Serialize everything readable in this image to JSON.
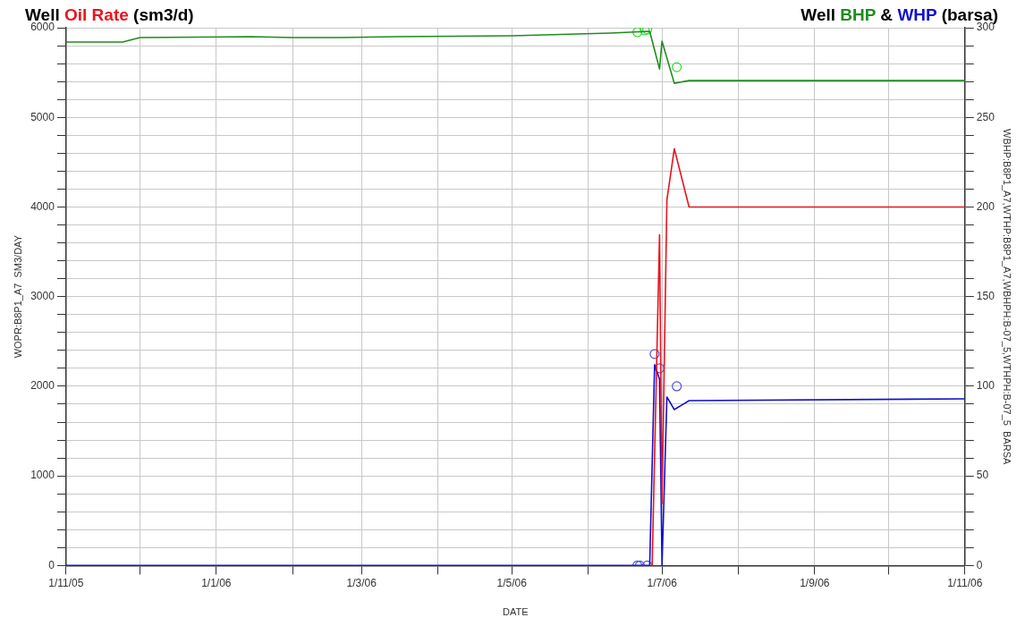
{
  "chart_data": {
    "type": "line",
    "annotations": [
      "Well",
      "(sm3/d)",
      "Well",
      "&",
      "(barsa)"
    ],
    "xlabel": "DATE",
    "ylabel": "WOPR:B8P1_A7  SM3/DAY",
    "y2label": "WBHP:B8P1_A7,WTHP:B8P1_A7,WBHPH:B-07_5,WTHPH:B-07_5  BARSA",
    "xlim": [
      "2005-11-01",
      "2006-11-01"
    ],
    "xticks": [
      {
        "value": "2005-11-01",
        "label": "1/11/05"
      },
      {
        "value": "2005-12-01",
        "label": null
      },
      {
        "value": "2006-01-01",
        "label": "1/1/06"
      },
      {
        "value": "2006-02-01",
        "label": null
      },
      {
        "value": "2006-03-01",
        "label": "1/3/06"
      },
      {
        "value": "2006-04-01",
        "label": null
      },
      {
        "value": "2006-05-01",
        "label": "1/5/06"
      },
      {
        "value": "2006-06-01",
        "label": null
      },
      {
        "value": "2006-07-01",
        "label": "1/7/06"
      },
      {
        "value": "2006-08-01",
        "label": null
      },
      {
        "value": "2006-09-01",
        "label": "1/9/06"
      },
      {
        "value": "2006-10-01",
        "label": null
      },
      {
        "value": "2006-11-01",
        "label": "1/11/06"
      }
    ],
    "ylim": [
      0,
      6000
    ],
    "yticks": [
      0,
      {
        "value": 200,
        "label": null
      },
      {
        "value": 400,
        "label": null
      },
      {
        "value": 600,
        "label": null
      },
      {
        "value": 800,
        "label": null
      },
      1000,
      {
        "value": 1200,
        "label": null
      },
      {
        "value": 1400,
        "label": null
      },
      {
        "value": 1600,
        "label": null
      },
      {
        "value": 1800,
        "label": null
      },
      2000,
      {
        "value": 2200,
        "label": null
      },
      {
        "value": 2400,
        "label": null
      },
      {
        "value": 2600,
        "label": null
      },
      {
        "value": 2800,
        "label": null
      },
      3000,
      {
        "value": 3200,
        "label": null
      },
      {
        "value": 3400,
        "label": null
      },
      {
        "value": 3600,
        "label": null
      },
      {
        "value": 3800,
        "label": null
      },
      4000,
      {
        "value": 4200,
        "label": null
      },
      {
        "value": 4400,
        "label": null
      },
      {
        "value": 4600,
        "label": null
      },
      {
        "value": 4800,
        "label": null
      },
      5000,
      {
        "value": 5200,
        "label": null
      },
      {
        "value": 5400,
        "label": null
      },
      {
        "value": 5600,
        "label": null
      },
      {
        "value": 5800,
        "label": null
      },
      6000
    ],
    "y2lim": [
      0,
      300
    ],
    "y2ticks": [
      0,
      {
        "value": 10,
        "label": null
      },
      {
        "value": 20,
        "label": null
      },
      {
        "value": 30,
        "label": null
      },
      {
        "value": 40,
        "label": null
      },
      50,
      {
        "value": 60,
        "label": null
      },
      {
        "value": 70,
        "label": null
      },
      {
        "value": 80,
        "label": null
      },
      {
        "value": 90,
        "label": null
      },
      100,
      {
        "value": 110,
        "label": null
      },
      {
        "value": 120,
        "label": null
      },
      {
        "value": 130,
        "label": null
      },
      {
        "value": 140,
        "label": null
      },
      150,
      {
        "value": 160,
        "label": null
      },
      {
        "value": 170,
        "label": null
      },
      {
        "value": 180,
        "label": null
      },
      {
        "value": 190,
        "label": null
      },
      200,
      {
        "value": 210,
        "label": null
      },
      {
        "value": 220,
        "label": null
      },
      {
        "value": 230,
        "label": null
      },
      {
        "value": 240,
        "label": null
      },
      250,
      {
        "value": 260,
        "label": null
      },
      {
        "value": 270,
        "label": null
      },
      {
        "value": 280,
        "label": null
      },
      {
        "value": 290,
        "label": null
      },
      300
    ],
    "grid": true,
    "marker": "none",
    "line_style": "solid",
    "series": [
      {
        "name": "Oil Rate",
        "color": "#e8141e",
        "x": [
          "2006-06-27",
          "2006-06-30",
          "2006-07-01",
          "2006-07-03",
          "2006-07-06",
          "2006-07-12",
          "2006-11-01"
        ],
        "values": [
          0,
          3690,
          690,
          4080,
          4650,
          4000,
          4000
        ]
      },
      {
        "name": "BHP",
        "color": "#1e8c1e",
        "axis": "y2",
        "x": [
          "2005-11-01",
          "2005-11-24",
          "2005-12-01",
          "2006-01-15",
          "2006-02-01",
          "2006-02-20",
          "2006-03-15",
          "2006-05-01",
          "2006-06-10",
          "2006-06-26",
          "2006-06-30",
          "2006-07-01",
          "2006-07-06",
          "2006-07-12",
          "2006-11-01"
        ],
        "values": [
          292,
          292,
          294.5,
          295,
          294.5,
          294.5,
          295,
          295.5,
          297,
          298,
          277,
          292.5,
          269,
          270.5,
          270.5
        ]
      },
      {
        "name": "WHP",
        "color": "#1010d0",
        "axis": "y2",
        "x": [
          "2005-11-01",
          "2006-06-26",
          "2006-06-28",
          "2006-06-30",
          "2006-07-01",
          "2006-07-03",
          "2006-07-06",
          "2006-07-12",
          "2006-11-01"
        ],
        "values": [
          0,
          0,
          112,
          104,
          0,
          94,
          87,
          92,
          93
        ]
      },
      {
        "type": "scatter",
        "marker": "circle",
        "color": "#33dd33",
        "axis": "y2",
        "x": [
          "2006-06-21",
          "2006-06-24",
          "2006-06-25",
          "2006-07-07"
        ],
        "values": [
          297.5,
          298.5,
          299,
          278
        ]
      },
      {
        "type": "scatter",
        "marker": "circle",
        "color": "#5050e0",
        "axis": "y2",
        "x": [
          "2006-06-21",
          "2006-06-22",
          "2006-06-25",
          "2006-06-28",
          "2006-06-30",
          "2006-07-07"
        ],
        "values": [
          0,
          0,
          0,
          118,
          110,
          100
        ]
      }
    ]
  }
}
